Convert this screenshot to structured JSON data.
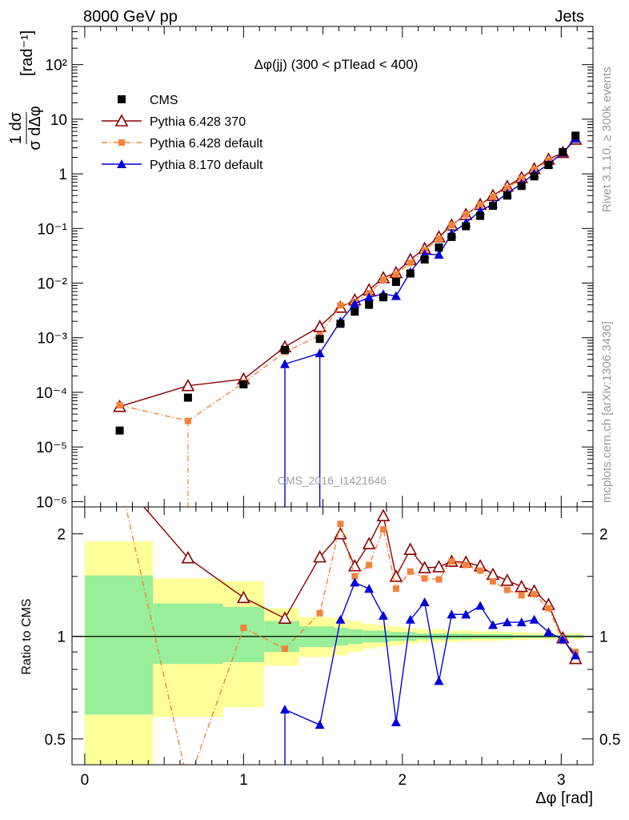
{
  "header": {
    "left": "8000 GeV pp",
    "right": "Jets"
  },
  "side_labels": {
    "rivet": "Rivet 3.1.10, ≥ 300k events",
    "mcplots": "mcplots.cern.ch [arXiv:1306.3436]"
  },
  "watermark": "CMS_2016_I1421646",
  "chart_data": [
    {
      "type": "line",
      "title": "Δφ(jj) (300 < pTlead <  400)",
      "xlabel": "Δφ [rad]",
      "ylabel": "1/σ dσ/dΔφ [rad⁻¹]",
      "yscale": "log",
      "xlim": [
        -0.08,
        3.2
      ],
      "ylim": [
        8e-07,
        500
      ],
      "x_ticks": [
        "0",
        "1",
        "2",
        "3"
      ],
      "y_ticks": [
        "10⁻⁶",
        "10⁻⁵",
        "10⁻⁴",
        "10⁻³",
        "10⁻²",
        "10⁻¹",
        "1",
        "10",
        "10²"
      ],
      "legend_position": "top-left",
      "series": [
        {
          "name": "CMS",
          "color": "#000000",
          "marker": "square",
          "points": [
            [
              0.22,
              2e-05
            ],
            [
              0.65,
              8e-05
            ],
            [
              1.0,
              0.00014
            ],
            [
              1.26,
              0.0006
            ],
            [
              1.48,
              0.00095
            ],
            [
              1.61,
              0.0018
            ],
            [
              1.7,
              0.003
            ],
            [
              1.79,
              0.004
            ],
            [
              1.88,
              0.0055
            ],
            [
              1.96,
              0.0105
            ],
            [
              2.05,
              0.015
            ],
            [
              2.14,
              0.027
            ],
            [
              2.23,
              0.045
            ],
            [
              2.31,
              0.07
            ],
            [
              2.4,
              0.11
            ],
            [
              2.49,
              0.17
            ],
            [
              2.57,
              0.26
            ],
            [
              2.66,
              0.4
            ],
            [
              2.75,
              0.6
            ],
            [
              2.83,
              0.9
            ],
            [
              2.92,
              1.45
            ],
            [
              3.01,
              2.5
            ],
            [
              3.09,
              5.0
            ]
          ]
        },
        {
          "name": "Pythia 6.428 370",
          "color": "#8b0000",
          "marker": "open-triangle",
          "line": "solid",
          "points": [
            [
              0.22,
              5.5e-05
            ],
            [
              0.65,
              0.000132
            ],
            [
              1.0,
              0.000175
            ],
            [
              1.26,
              0.00068
            ],
            [
              1.48,
              0.0016
            ],
            [
              1.61,
              0.0036
            ],
            [
              1.7,
              0.0049
            ],
            [
              1.79,
              0.0075
            ],
            [
              1.88,
              0.0125
            ],
            [
              1.96,
              0.0155
            ],
            [
              2.05,
              0.027
            ],
            [
              2.14,
              0.043
            ],
            [
              2.23,
              0.07
            ],
            [
              2.31,
              0.115
            ],
            [
              2.4,
              0.18
            ],
            [
              2.49,
              0.275
            ],
            [
              2.57,
              0.4
            ],
            [
              2.66,
              0.59
            ],
            [
              2.75,
              0.85
            ],
            [
              2.83,
              1.24
            ],
            [
              2.92,
              1.85
            ],
            [
              3.01,
              2.45
            ],
            [
              3.09,
              4.3
            ]
          ]
        },
        {
          "name": "Pythia 6.428 default",
          "color": "#f4823a",
          "marker": "square-small",
          "line": "dashdot",
          "points": [
            [
              0.22,
              5.8e-05
            ],
            [
              0.65,
              3e-05
            ],
            [
              1.0,
              0.00015
            ],
            [
              1.26,
              0.00055
            ],
            [
              1.48,
              0.0011
            ],
            [
              1.61,
              0.0039
            ],
            [
              1.7,
              0.0045
            ],
            [
              1.79,
              0.0065
            ],
            [
              1.88,
              0.0115
            ],
            [
              1.96,
              0.0145
            ],
            [
              2.05,
              0.0235
            ],
            [
              2.14,
              0.04
            ],
            [
              2.23,
              0.065
            ],
            [
              2.31,
              0.115
            ],
            [
              2.4,
              0.18
            ],
            [
              2.49,
              0.27
            ],
            [
              2.57,
              0.38
            ],
            [
              2.66,
              0.55
            ],
            [
              2.75,
              0.8
            ],
            [
              2.83,
              1.2
            ],
            [
              2.92,
              1.75
            ],
            [
              3.01,
              2.45
            ],
            [
              3.09,
              4.5
            ]
          ]
        },
        {
          "name": "Pythia 8.170 default",
          "color": "#0000dd",
          "marker": "triangle",
          "line": "solid",
          "points": [
            [
              0.22,
              null
            ],
            [
              0.65,
              null
            ],
            [
              1.0,
              null
            ],
            [
              1.26,
              0.00033
            ],
            [
              1.48,
              0.00052
            ],
            [
              1.61,
              0.002
            ],
            [
              1.7,
              0.0042
            ],
            [
              1.79,
              0.0055
            ],
            [
              1.88,
              0.0063
            ],
            [
              1.96,
              0.0058
            ],
            [
              2.05,
              0.016
            ],
            [
              2.14,
              0.034
            ],
            [
              2.23,
              0.033
            ],
            [
              2.31,
              0.081
            ],
            [
              2.4,
              0.127
            ],
            [
              2.49,
              0.209
            ],
            [
              2.57,
              0.28
            ],
            [
              2.66,
              0.44
            ],
            [
              2.75,
              0.66
            ],
            [
              2.83,
              1.01
            ],
            [
              2.92,
              1.49
            ],
            [
              3.01,
              2.45
            ],
            [
              3.09,
              4.4
            ]
          ]
        }
      ]
    },
    {
      "type": "line",
      "ylabel": "Ratio to CMS",
      "xlabel": "Δφ [rad]",
      "yscale": "log",
      "ylim": [
        0.42,
        2.4
      ],
      "y_ticks": [
        "0.5",
        "1",
        "2"
      ],
      "bands": {
        "edges": [
          0.0,
          0.43,
          0.87,
          1.13,
          1.35,
          1.57,
          1.66,
          1.75,
          1.83,
          1.92,
          2.0,
          2.09,
          2.18,
          2.27,
          2.36,
          2.44,
          2.53,
          2.62,
          2.7,
          2.79,
          2.88,
          2.96,
          3.05,
          3.14
        ],
        "green_low": [
          0.59,
          0.83,
          0.84,
          0.9,
          0.93,
          0.94,
          0.95,
          0.96,
          0.96,
          0.97,
          0.97,
          0.98,
          0.98,
          0.98,
          0.98,
          0.985,
          0.985,
          0.985,
          0.99,
          0.99,
          0.99,
          0.99,
          0.99
        ],
        "green_high": [
          1.51,
          1.25,
          1.22,
          1.11,
          1.07,
          1.06,
          1.05,
          1.04,
          1.04,
          1.03,
          1.03,
          1.02,
          1.02,
          1.02,
          1.02,
          1.015,
          1.015,
          1.015,
          1.01,
          1.01,
          1.01,
          1.01,
          1.01
        ],
        "yellow_low": [
          0.3,
          0.58,
          0.62,
          0.82,
          0.87,
          0.88,
          0.9,
          0.92,
          0.93,
          0.94,
          0.95,
          0.96,
          0.96,
          0.96,
          0.97,
          0.97,
          0.97,
          0.975,
          0.975,
          0.98,
          0.98,
          0.98,
          0.98
        ],
        "yellow_high": [
          1.9,
          1.48,
          1.45,
          1.21,
          1.14,
          1.13,
          1.11,
          1.09,
          1.08,
          1.07,
          1.06,
          1.05,
          1.05,
          1.04,
          1.04,
          1.035,
          1.035,
          1.03,
          1.03,
          1.025,
          1.025,
          1.02,
          1.02
        ]
      },
      "series": [
        {
          "name": "Pythia 6.428 370",
          "color": "#8b0000",
          "marker": "open-triangle",
          "line": "solid",
          "points": [
            [
              0.22,
              2.9
            ],
            [
              0.65,
              1.7
            ],
            [
              1.0,
              1.3
            ],
            [
              1.26,
              1.13
            ],
            [
              1.48,
              1.71
            ],
            [
              1.61,
              2.0
            ],
            [
              1.7,
              1.61
            ],
            [
              1.79,
              1.87
            ],
            [
              1.88,
              2.26
            ],
            [
              1.96,
              1.5
            ],
            [
              2.05,
              1.8
            ],
            [
              2.14,
              1.59
            ],
            [
              2.23,
              1.6
            ],
            [
              2.31,
              1.66
            ],
            [
              2.4,
              1.65
            ],
            [
              2.49,
              1.61
            ],
            [
              2.57,
              1.52
            ],
            [
              2.66,
              1.46
            ],
            [
              2.75,
              1.4
            ],
            [
              2.83,
              1.36
            ],
            [
              2.92,
              1.24
            ],
            [
              3.01,
              0.99
            ],
            [
              3.09,
              0.86
            ]
          ]
        },
        {
          "name": "Pythia 6.428 default",
          "color": "#f4823a",
          "marker": "square-small",
          "line": "dashdot",
          "points": [
            [
              0.22,
              2.9
            ],
            [
              0.65,
              0.37
            ],
            [
              1.0,
              1.06
            ],
            [
              1.26,
              0.92
            ],
            [
              1.48,
              1.17
            ],
            [
              1.61,
              2.14
            ],
            [
              1.7,
              1.5
            ],
            [
              1.79,
              1.62
            ],
            [
              1.88,
              2.06
            ],
            [
              1.96,
              1.38
            ],
            [
              2.05,
              1.55
            ],
            [
              2.14,
              1.48
            ],
            [
              2.23,
              1.47
            ],
            [
              2.31,
              1.66
            ],
            [
              2.4,
              1.62
            ],
            [
              2.49,
              1.56
            ],
            [
              2.57,
              1.45
            ],
            [
              2.66,
              1.37
            ],
            [
              2.75,
              1.32
            ],
            [
              2.83,
              1.33
            ],
            [
              2.92,
              1.21
            ],
            [
              3.01,
              0.97
            ],
            [
              3.09,
              0.9
            ]
          ]
        },
        {
          "name": "Pythia 8.170 default",
          "color": "#0000dd",
          "marker": "triangle",
          "line": "solid",
          "points": [
            [
              1.26,
              0.61
            ],
            [
              1.48,
              0.55
            ],
            [
              1.61,
              1.12
            ],
            [
              1.7,
              1.44
            ],
            [
              1.79,
              1.38
            ],
            [
              1.88,
              1.15
            ],
            [
              1.96,
              0.56
            ],
            [
              2.05,
              1.12
            ],
            [
              2.14,
              1.26
            ],
            [
              2.23,
              0.74
            ],
            [
              2.31,
              1.16
            ],
            [
              2.4,
              1.16
            ],
            [
              2.49,
              1.23
            ],
            [
              2.57,
              1.08
            ],
            [
              2.66,
              1.1
            ],
            [
              2.75,
              1.1
            ],
            [
              2.83,
              1.12
            ],
            [
              2.92,
              1.03
            ],
            [
              3.01,
              0.98
            ],
            [
              3.09,
              0.88
            ]
          ]
        }
      ]
    }
  ]
}
